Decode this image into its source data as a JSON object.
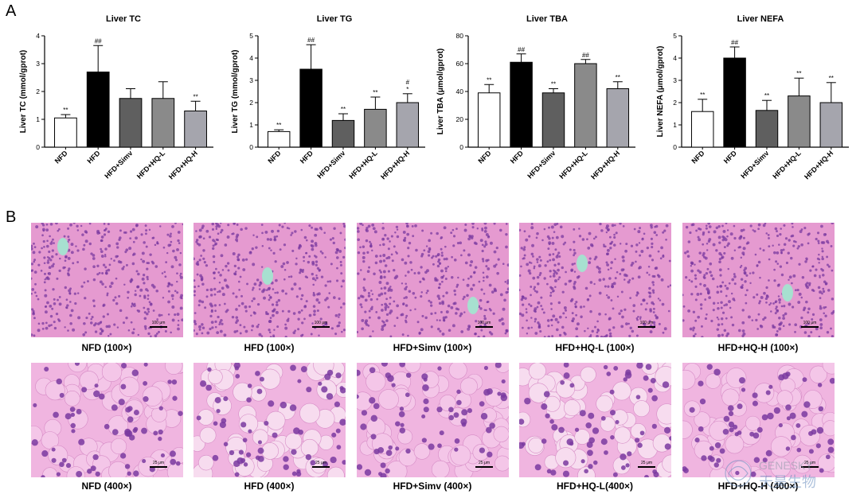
{
  "panel_a_letter": "A",
  "panel_b_letter": "B",
  "chart_data": [
    {
      "type": "bar",
      "title": "Liver TC",
      "ylabel": "Liver TC (mmol/gprot)",
      "ylim": [
        0,
        4
      ],
      "yticks": [
        "0",
        "1",
        "2",
        "3",
        "4"
      ],
      "categories": [
        "NFD",
        "HFD",
        "HFD+Simv",
        "HFD+HQ-L",
        "HFD+HQ-H"
      ],
      "values": [
        1.05,
        2.7,
        1.75,
        1.75,
        1.3
      ],
      "errors": [
        0.12,
        0.95,
        0.35,
        0.6,
        0.35
      ],
      "annotations": [
        "**",
        "##",
        "",
        "",
        "**"
      ]
    },
    {
      "type": "bar",
      "title": "Liver TG",
      "ylabel": "Liver TG (mmol/gprot)",
      "ylim": [
        0,
        5
      ],
      "yticks": [
        "0",
        "1",
        "2",
        "3",
        "4",
        "5"
      ],
      "categories": [
        "NFD",
        "HFD",
        "HFD+Simv",
        "HFD+HQ-L",
        "HFD+HQ-H"
      ],
      "values": [
        0.7,
        3.5,
        1.2,
        1.7,
        2.0
      ],
      "errors": [
        0.08,
        1.1,
        0.3,
        0.55,
        0.4
      ],
      "annotations": [
        "**",
        "##",
        "**",
        "**",
        "#\n*"
      ]
    },
    {
      "type": "bar",
      "title": "Liver TBA",
      "ylabel": "Liver TBA (μmol/gprot)",
      "ylim": [
        0,
        80
      ],
      "yticks": [
        "0",
        "20",
        "40",
        "60",
        "80"
      ],
      "categories": [
        "NFD",
        "HFD",
        "HFD+Simv",
        "HFD+HQ-L",
        "HFD+HQ-H"
      ],
      "values": [
        39,
        61,
        39,
        60,
        42
      ],
      "errors": [
        6,
        6,
        3,
        3,
        5
      ],
      "annotations": [
        "**",
        "##",
        "**",
        "##",
        "**"
      ]
    },
    {
      "type": "bar",
      "title": "Liver NEFA",
      "ylabel": "Liver NEFA (μmol/gprot)",
      "ylim": [
        0,
        5
      ],
      "yticks": [
        "0",
        "1",
        "2",
        "3",
        "4",
        "5"
      ],
      "categories": [
        "NFD",
        "HFD",
        "HFD+Simv",
        "HFD+HQ-L",
        "HFD+HQ-H"
      ],
      "values": [
        1.6,
        4.0,
        1.65,
        2.3,
        2.0
      ],
      "errors": [
        0.55,
        0.5,
        0.45,
        0.8,
        0.9
      ],
      "annotations": [
        "**",
        "##",
        "**",
        "**",
        "**"
      ]
    }
  ],
  "colors": {
    "bars": [
      "#ffffff",
      "#000000",
      "#5f5f5f",
      "#8a8a8a",
      "#a5a5ad"
    ],
    "tissue_bg": "#e8a6d6",
    "nuclei": "#7a3aa0",
    "vessel": "#a7e0d0"
  },
  "micrographs": {
    "row1": [
      {
        "caption": "NFD (100×)",
        "scale": "100 μm"
      },
      {
        "caption": "HFD (100×)",
        "scale": "100 μm"
      },
      {
        "caption": "HFD+Simv (100×)",
        "scale": "100 μm"
      },
      {
        "caption": "HFD+HQ-L (100×)",
        "scale": "100 μm"
      },
      {
        "caption": "HFD+HQ-H (100×)",
        "scale": "100 μm"
      }
    ],
    "row2": [
      {
        "caption": "NFD (400×)",
        "scale": "25 μm"
      },
      {
        "caption": "HFD (400×)",
        "scale": "25 μm"
      },
      {
        "caption": "HFD+Simv (400×)",
        "scale": "25 μm"
      },
      {
        "caption": "HFD+HQ-L(400×)",
        "scale": "25 μm"
      },
      {
        "caption": "HFD+HQ-H (400×)",
        "scale": "25 μm"
      }
    ]
  },
  "watermark": {
    "line1": "GENESKY",
    "line2": "天昊生物"
  }
}
